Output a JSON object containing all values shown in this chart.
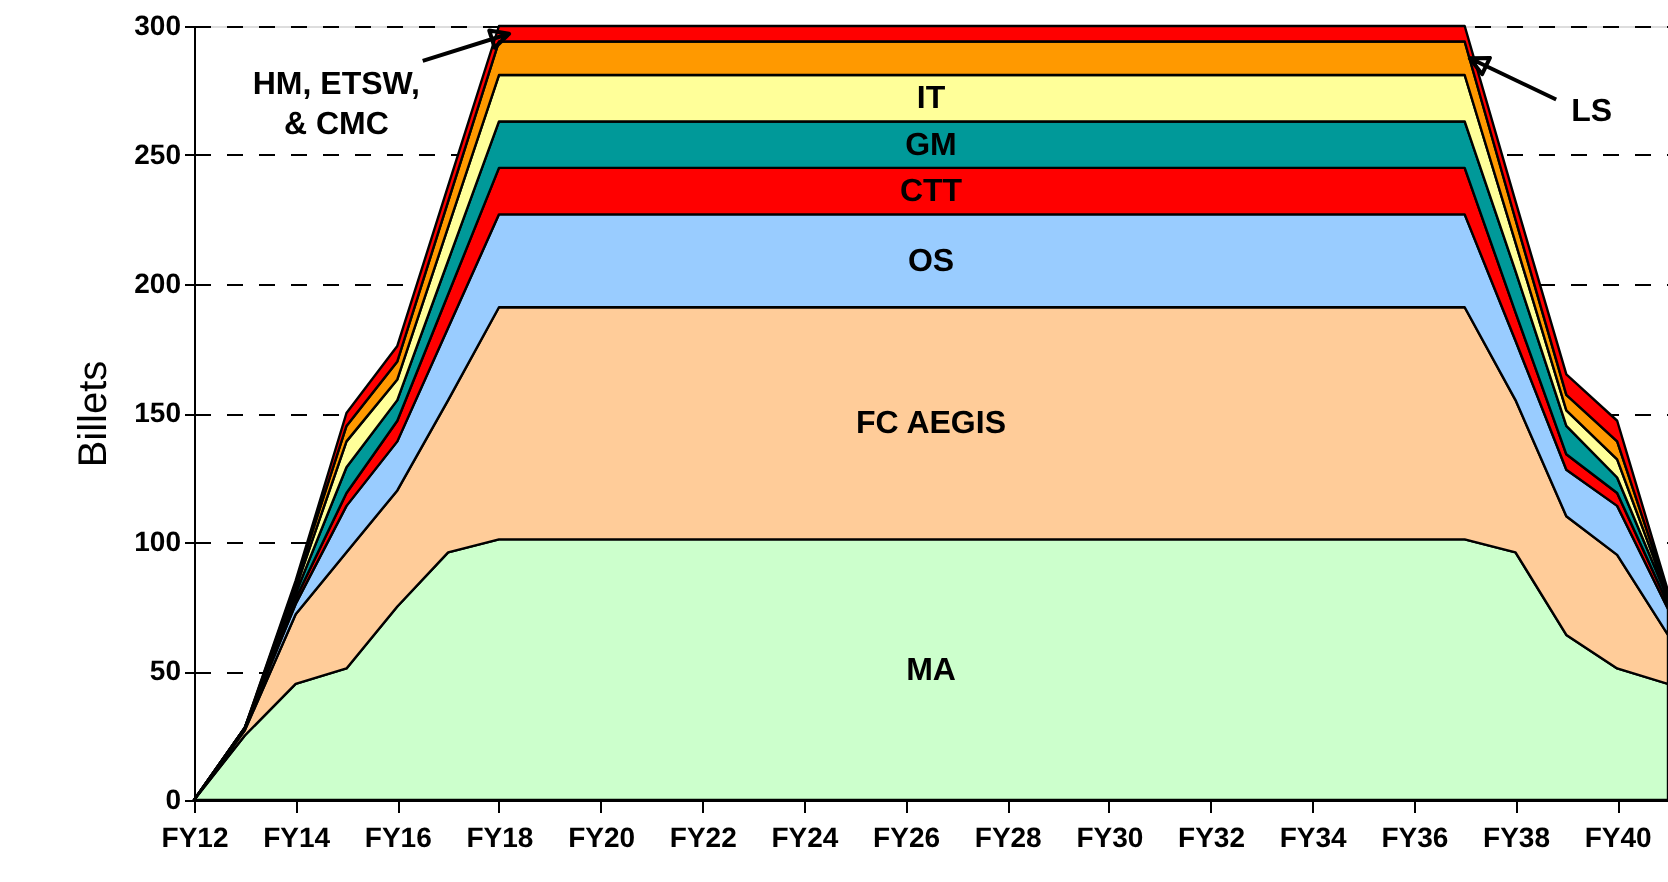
{
  "chart_data": {
    "type": "area",
    "stacked": true,
    "ylabel": "Billets",
    "categories": [
      "FY12",
      null,
      "FY14",
      null,
      "FY16",
      null,
      "FY18",
      null,
      "FY20",
      null,
      "FY22",
      null,
      "FY24",
      null,
      "FY26",
      null,
      "FY28",
      null,
      "FY30",
      null,
      "FY32",
      null,
      "FY34",
      null,
      "FY36",
      null,
      "FY38",
      null,
      "FY40",
      null
    ],
    "series": [
      {
        "name": "MA",
        "color": "#ccffcc",
        "values": [
          0,
          25,
          45,
          51,
          75,
          96,
          101,
          101,
          101,
          101,
          101,
          101,
          101,
          101,
          101,
          101,
          101,
          101,
          101,
          101,
          101,
          101,
          101,
          101,
          101,
          101,
          96,
          64,
          51,
          45
        ]
      },
      {
        "name": "FC AEGIS",
        "color": "#ffcc99",
        "values": [
          0,
          2,
          27,
          45,
          45,
          59,
          90,
          90,
          90,
          90,
          90,
          90,
          90,
          90,
          90,
          90,
          90,
          90,
          90,
          90,
          90,
          90,
          90,
          90,
          90,
          90,
          59,
          46,
          44,
          19
        ]
      },
      {
        "name": "OS",
        "color": "#99ccff",
        "values": [
          0,
          1,
          4,
          18,
          19,
          28,
          36,
          36,
          36,
          36,
          36,
          36,
          36,
          36,
          36,
          36,
          36,
          36,
          36,
          36,
          36,
          36,
          36,
          36,
          36,
          36,
          23,
          18,
          19,
          10
        ]
      },
      {
        "name": "CTT",
        "color": "#ff0000",
        "values": [
          0,
          0,
          2,
          5,
          8,
          13,
          18,
          18,
          18,
          18,
          18,
          18,
          18,
          18,
          18,
          18,
          18,
          18,
          18,
          18,
          18,
          18,
          18,
          18,
          18,
          18,
          11,
          6,
          5,
          2
        ]
      },
      {
        "name": "GM",
        "color": "#009999",
        "values": [
          0,
          0,
          2,
          10,
          8,
          13,
          18,
          18,
          18,
          18,
          18,
          18,
          18,
          18,
          18,
          18,
          18,
          18,
          18,
          18,
          18,
          18,
          18,
          18,
          18,
          18,
          16,
          11,
          6,
          2
        ]
      },
      {
        "name": "IT",
        "color": "#ffff99",
        "values": [
          0,
          0,
          2,
          10,
          8,
          13,
          18,
          18,
          18,
          18,
          18,
          18,
          18,
          18,
          18,
          18,
          18,
          18,
          18,
          18,
          18,
          18,
          18,
          18,
          18,
          18,
          11,
          6,
          7,
          1
        ]
      },
      {
        "name": "LS",
        "color": "#ff9900",
        "values": [
          0,
          0,
          2,
          6,
          7,
          10,
          13,
          13,
          13,
          13,
          13,
          13,
          13,
          13,
          13,
          13,
          13,
          13,
          13,
          13,
          13,
          13,
          13,
          13,
          13,
          13,
          9,
          6,
          7,
          1
        ]
      },
      {
        "name": "HM, ETSW, & CMC",
        "color": "#ff0000",
        "values": [
          0,
          0,
          1,
          5,
          6,
          6,
          6,
          6,
          6,
          6,
          6,
          6,
          6,
          6,
          6,
          6,
          6,
          6,
          6,
          6,
          6,
          6,
          6,
          6,
          6,
          6,
          7,
          8,
          8,
          1
        ]
      }
    ],
    "ylim": [
      0,
      300
    ],
    "yticks": [
      0,
      50,
      100,
      150,
      200,
      250,
      300
    ],
    "grid": "y"
  }
}
